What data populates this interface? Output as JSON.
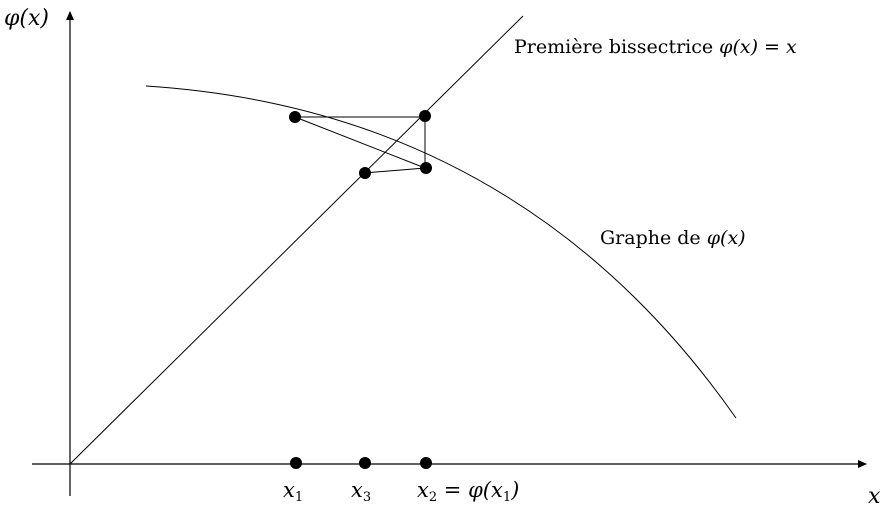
{
  "axes": {
    "y_label": "φ(x)",
    "x_label": "x"
  },
  "bisector_label": {
    "text": "Première bissectrice",
    "formula": "φ(x) = x"
  },
  "curve_label": {
    "text": "Graphe de",
    "formula": "φ(x)"
  },
  "tick_labels": {
    "x1": {
      "base": "x",
      "sub": "1"
    },
    "x3": {
      "base": "x",
      "sub": "3"
    },
    "x2": {
      "base": "x",
      "sub": "2",
      "suffix_pre": " = φ(x",
      "suffix_sub": "1",
      "suffix_post": ")"
    }
  },
  "colors": {
    "ink": "#000000",
    "background": "#ffffff"
  }
}
